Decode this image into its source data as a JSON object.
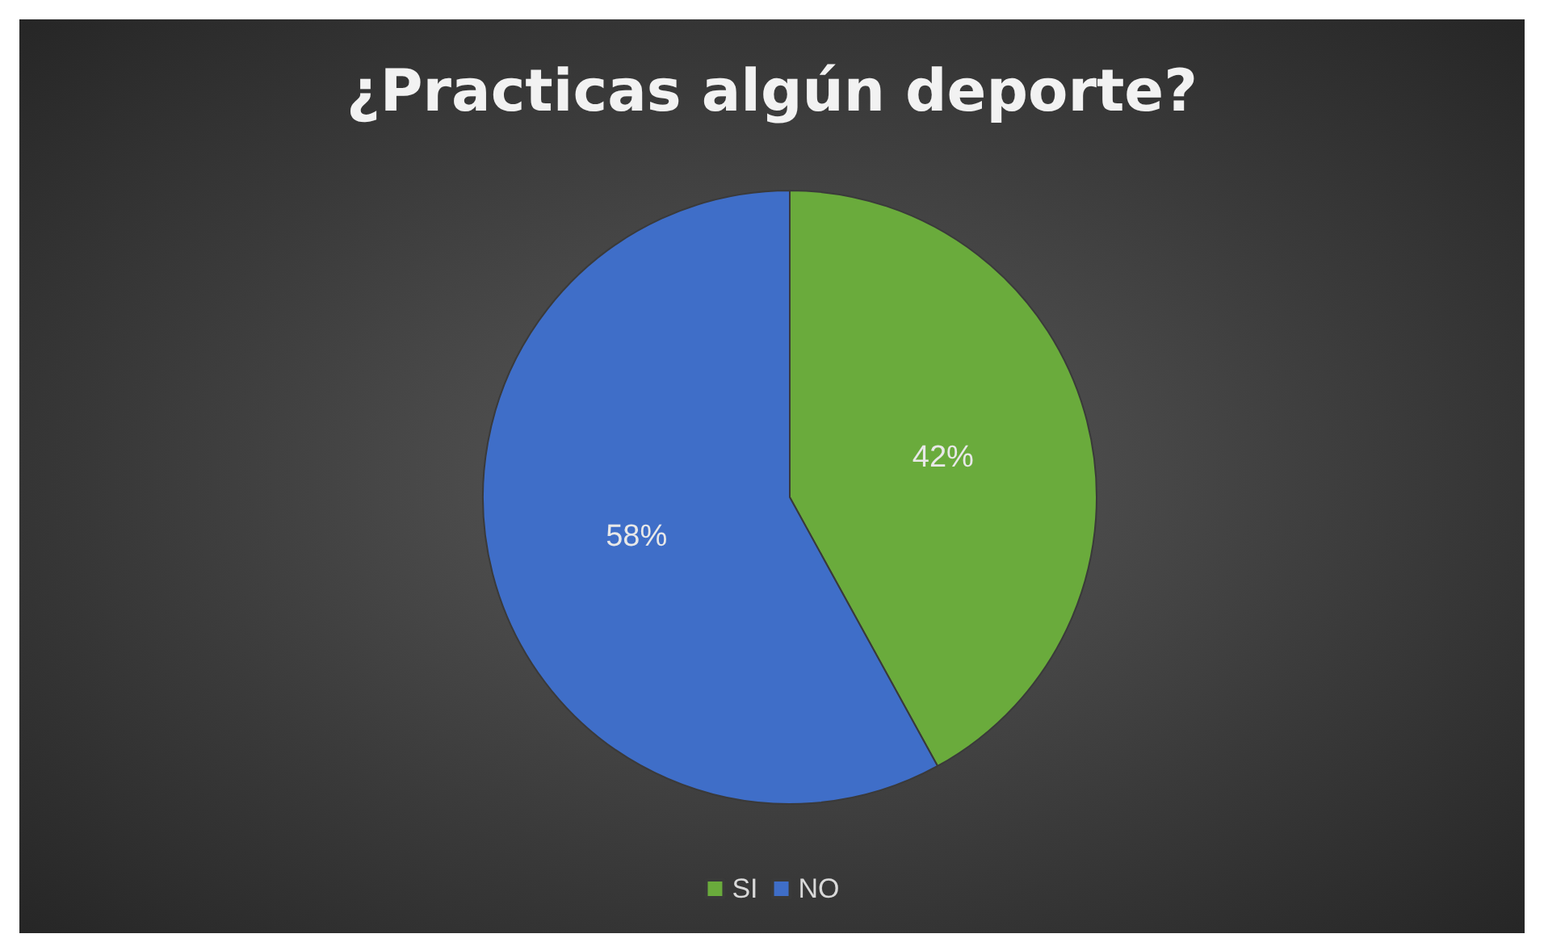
{
  "chart_data": {
    "type": "pie",
    "title": "¿Practicas algún deporte?",
    "categories": [
      "SI",
      "NO"
    ],
    "values": [
      42,
      58
    ],
    "colors": [
      "#6aab3c",
      "#3f6ec8"
    ],
    "value_labels": [
      "42%",
      "58%"
    ],
    "legend": "bottom"
  }
}
